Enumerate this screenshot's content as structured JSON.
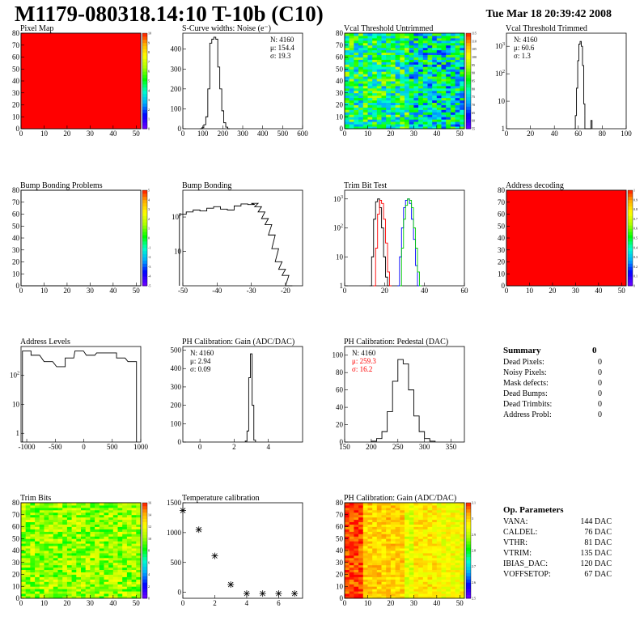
{
  "header": {
    "title": "M1179-080318.14:10 T-10b (C10)",
    "date": "Tue Mar 18 20:39:42 2008"
  },
  "colors": {
    "red": "#ff0000",
    "palette_stops": [
      "#6400ff",
      "#0000ff",
      "#00aaff",
      "#00ffcc",
      "#00ff00",
      "#aaff00",
      "#ffff00",
      "#ffaa00",
      "#ff0000"
    ]
  },
  "summary": {
    "title": "Summary",
    "total": "0",
    "rows": [
      {
        "label": "Dead Pixels:",
        "value": "0"
      },
      {
        "label": "Noisy Pixels:",
        "value": "0"
      },
      {
        "label": "Mask defects:",
        "value": "0"
      },
      {
        "label": "Dead Bumps:",
        "value": "0"
      },
      {
        "label": "Dead Trimbits:",
        "value": "0"
      },
      {
        "label": "Address Probl:",
        "value": "0"
      }
    ]
  },
  "op_params": {
    "title": "Op. Parameters",
    "rows": [
      {
        "label": "VANA:",
        "value": "144 DAC"
      },
      {
        "label": "CALDEL:",
        "value": "76 DAC"
      },
      {
        "label": "VTHR:",
        "value": "81 DAC"
      },
      {
        "label": "VTRIM:",
        "value": "135 DAC"
      },
      {
        "label": "IBIAS_DAC:",
        "value": "120 DAC"
      },
      {
        "label": "VOFFSETOP:",
        "value": "67 DAC"
      }
    ]
  },
  "chart_data": [
    {
      "type": "heatmap",
      "title": "Pixel Map",
      "xlim": [
        0,
        52
      ],
      "ylim": [
        0,
        80
      ],
      "xticks": [
        0,
        10,
        20,
        30,
        40,
        50
      ],
      "yticks": [
        0,
        10,
        20,
        30,
        40,
        50,
        60,
        70,
        80
      ],
      "fill": "uniform-max",
      "zlim": [
        0,
        10
      ],
      "zticks": [
        0,
        1,
        2,
        3,
        4,
        5,
        6,
        7,
        8,
        9,
        10
      ]
    },
    {
      "type": "line",
      "title": "S-Curve widths: Noise (e⁻)",
      "xlim": [
        0,
        600
      ],
      "ylim": [
        0,
        480
      ],
      "xticks": [
        0,
        100,
        200,
        300,
        400,
        500,
        600
      ],
      "yticks": [
        0,
        100,
        200,
        300,
        400
      ],
      "stats": [
        "N: 4160",
        "μ: 154.4",
        "σ: 19.3"
      ],
      "series": [
        {
          "x": [
            90,
            100,
            110,
            120,
            130,
            140,
            150,
            160,
            170,
            180,
            190,
            200,
            210,
            220,
            230
          ],
          "values": [
            0,
            5,
            20,
            60,
            200,
            430,
            450,
            460,
            450,
            310,
            200,
            90,
            30,
            8,
            0
          ]
        }
      ]
    },
    {
      "type": "heatmap",
      "title": "Vcal Threshold Untrimmed",
      "xlim": [
        0,
        52
      ],
      "ylim": [
        0,
        80
      ],
      "xticks": [
        0,
        10,
        20,
        30,
        40,
        50
      ],
      "yticks": [
        0,
        10,
        20,
        30,
        40,
        50,
        60,
        70,
        80
      ],
      "fill": "noise",
      "zlim": [
        55,
        115
      ],
      "zticks": [
        55,
        60,
        65,
        70,
        75,
        80,
        85,
        90,
        95,
        100,
        105,
        110,
        115
      ]
    },
    {
      "type": "line",
      "title": "Vcal Threshold Trimmed",
      "log": true,
      "xlim": [
        0,
        100
      ],
      "ylim": [
        1,
        3000
      ],
      "xticks": [
        0,
        20,
        40,
        60,
        80,
        100
      ],
      "yticks": [
        1,
        10,
        100,
        1000
      ],
      "stats": [
        "N: 4160",
        "μ: 60.6",
        "σ:  1.3"
      ],
      "series": [
        {
          "x": [
            57,
            58,
            59,
            60,
            61,
            62,
            63,
            64,
            65,
            66,
            70,
            71
          ],
          "values": [
            1,
            3,
            30,
            300,
            1200,
            1500,
            1000,
            200,
            8,
            1,
            1,
            2
          ]
        }
      ]
    },
    {
      "type": "heatmap",
      "title": "Bump Bonding Problems",
      "xlim": [
        0,
        52
      ],
      "ylim": [
        0,
        80
      ],
      "xticks": [
        0,
        10,
        20,
        30,
        40,
        50
      ],
      "yticks": [
        0,
        10,
        20,
        30,
        40,
        50,
        60,
        70,
        80
      ],
      "fill": "empty",
      "zlim": [
        -5,
        5
      ],
      "zticks": [
        -5,
        -4,
        -3,
        -2,
        -1,
        0,
        1,
        2,
        3,
        4,
        5
      ]
    },
    {
      "type": "line",
      "title": "Bump Bonding",
      "log": true,
      "xlim": [
        -50,
        -15
      ],
      "ylim": [
        1,
        600
      ],
      "xticks": [
        -50,
        -40,
        -30,
        -20
      ],
      "yticks": [
        10,
        100
      ],
      "stats": [],
      "series": [
        {
          "x": [
            -50,
            -48,
            -46,
            -44,
            -42,
            -40,
            -38,
            -36,
            -34,
            -32,
            -30,
            -29,
            -28,
            -27,
            -26,
            -25,
            -24,
            -23,
            -22,
            -21,
            -20,
            -19
          ],
          "values": [
            120,
            140,
            160,
            150,
            180,
            200,
            170,
            160,
            210,
            240,
            230,
            250,
            200,
            140,
            90,
            60,
            30,
            12,
            5,
            3,
            2,
            1
          ]
        }
      ]
    },
    {
      "type": "line",
      "title": "Trim Bit Test",
      "log": true,
      "xlim": [
        0,
        60
      ],
      "ylim": [
        1,
        2000
      ],
      "xticks": [
        0,
        20,
        40,
        60
      ],
      "yticks": [
        1,
        10,
        100,
        1000
      ],
      "stats": [],
      "series": [
        {
          "x": [
            13,
            14,
            15,
            16,
            17,
            18,
            19,
            20,
            21,
            22
          ],
          "values": [
            1,
            10,
            200,
            800,
            1000,
            500,
            100,
            10,
            2,
            1
          ],
          "color": "#000000"
        },
        {
          "x": [
            15,
            16,
            17,
            18,
            19,
            20,
            21,
            22,
            23
          ],
          "values": [
            1,
            20,
            300,
            900,
            700,
            200,
            30,
            3,
            1
          ],
          "color": "#ff0000"
        },
        {
          "x": [
            27,
            28,
            29,
            30,
            31,
            32,
            33,
            34,
            35,
            36,
            37
          ],
          "values": [
            1,
            10,
            100,
            500,
            900,
            1000,
            700,
            200,
            40,
            5,
            1
          ],
          "color": "#0000ff"
        },
        {
          "x": [
            28,
            29,
            30,
            31,
            32,
            33,
            34,
            35,
            36,
            37,
            38
          ],
          "values": [
            1,
            20,
            200,
            600,
            1000,
            900,
            500,
            100,
            20,
            3,
            1
          ],
          "color": "#00cc00"
        }
      ]
    },
    {
      "type": "heatmap",
      "title": "Address decoding",
      "xlim": [
        0,
        52
      ],
      "ylim": [
        0,
        80
      ],
      "xticks": [
        0,
        10,
        20,
        30,
        40,
        50
      ],
      "yticks": [
        0,
        10,
        20,
        30,
        40,
        50,
        60,
        70,
        80
      ],
      "fill": "uniform-max",
      "zlim": [
        0,
        1
      ],
      "zticks": [
        0,
        0.1,
        0.2,
        0.3,
        0.4,
        0.5,
        0.6,
        0.7,
        0.8,
        0.9,
        1
      ]
    },
    {
      "type": "line",
      "title": "Address Levels",
      "log": true,
      "xlim": [
        -1100,
        1000
      ],
      "ylim": [
        0.5,
        1000
      ],
      "xticks": [
        -1000,
        -500,
        0,
        500,
        1000
      ],
      "yticks": [
        1,
        10,
        100
      ],
      "stats": [],
      "series": [
        {
          "x": [
            -1000,
            -850,
            -620,
            -400,
            -250,
            -80,
            120,
            300,
            500,
            650,
            850
          ],
          "values": [
            700,
            500,
            300,
            200,
            400,
            700,
            500,
            600,
            600,
            400,
            300
          ]
        }
      ]
    },
    {
      "type": "line",
      "title": "PH Calibration: Gain (ADC/DAC)",
      "xlim": [
        -1,
        6
      ],
      "ylim": [
        0,
        520
      ],
      "xticks": [
        0,
        2,
        4
      ],
      "yticks": [
        0,
        100,
        200,
        300,
        400,
        500
      ],
      "stats": [
        "N: 4160",
        "μ: 2.94",
        "σ: 0.09"
      ],
      "series": [
        {
          "x": [
            2.7,
            2.8,
            2.9,
            3.0,
            3.1,
            3.2
          ],
          "values": [
            5,
            60,
            350,
            480,
            200,
            10
          ]
        }
      ]
    },
    {
      "type": "line",
      "title": "PH Calibration: Pedestal (DAC)",
      "xlim": [
        150,
        375
      ],
      "ylim": [
        0,
        110
      ],
      "xticks": [
        150,
        200,
        250,
        300,
        350
      ],
      "yticks": [
        0,
        20,
        40,
        60,
        80,
        100
      ],
      "stats": [
        "N: 4160",
        "μ: 259.3",
        "σ: 16.2"
      ],
      "stats_colors": [
        "#000000",
        "#ff0000",
        "#ff0000"
      ],
      "series": [
        {
          "x": [
            205,
            215,
            225,
            235,
            245,
            255,
            265,
            275,
            285,
            295,
            305,
            315
          ],
          "values": [
            1,
            4,
            12,
            35,
            70,
            95,
            90,
            60,
            30,
            12,
            4,
            1
          ]
        }
      ]
    },
    {
      "type": "table",
      "title": "Summary"
    },
    {
      "type": "heatmap",
      "title": "Trim Bits",
      "xlim": [
        0,
        52
      ],
      "ylim": [
        0,
        80
      ],
      "xticks": [
        0,
        10,
        20,
        30,
        40,
        50
      ],
      "yticks": [
        0,
        10,
        20,
        30,
        40,
        50,
        60,
        70,
        80
      ],
      "fill": "trim",
      "zlim": [
        0,
        16
      ],
      "zticks": [
        0,
        2,
        4,
        6,
        8,
        10,
        12,
        14,
        16
      ]
    },
    {
      "type": "scatter",
      "title": "Temperature calibration",
      "xlim": [
        0,
        7.5
      ],
      "ylim": [
        -100,
        1500
      ],
      "xticks": [
        0,
        2,
        4,
        6
      ],
      "yticks": [
        0,
        500,
        1000,
        1500
      ],
      "stats": [],
      "series": [
        {
          "x": [
            0,
            1,
            2,
            3,
            4,
            5,
            6,
            7
          ],
          "values": [
            1370,
            1050,
            610,
            130,
            -20,
            -20,
            -20,
            -20
          ]
        }
      ]
    },
    {
      "type": "heatmap",
      "title": "PH Calibration: Gain (ADC/DAC)",
      "xlim": [
        0,
        52
      ],
      "ylim": [
        0,
        80
      ],
      "xticks": [
        0,
        10,
        20,
        30,
        40,
        50
      ],
      "yticks": [
        0,
        10,
        20,
        30,
        40,
        50,
        60,
        70,
        80
      ],
      "fill": "gain",
      "zlim": [
        2.5,
        3.1
      ],
      "zticks": [
        2.5,
        2.6,
        2.7,
        2.8,
        2.9,
        3,
        3.1
      ]
    },
    {
      "type": "table",
      "title": "Op. Parameters"
    }
  ]
}
